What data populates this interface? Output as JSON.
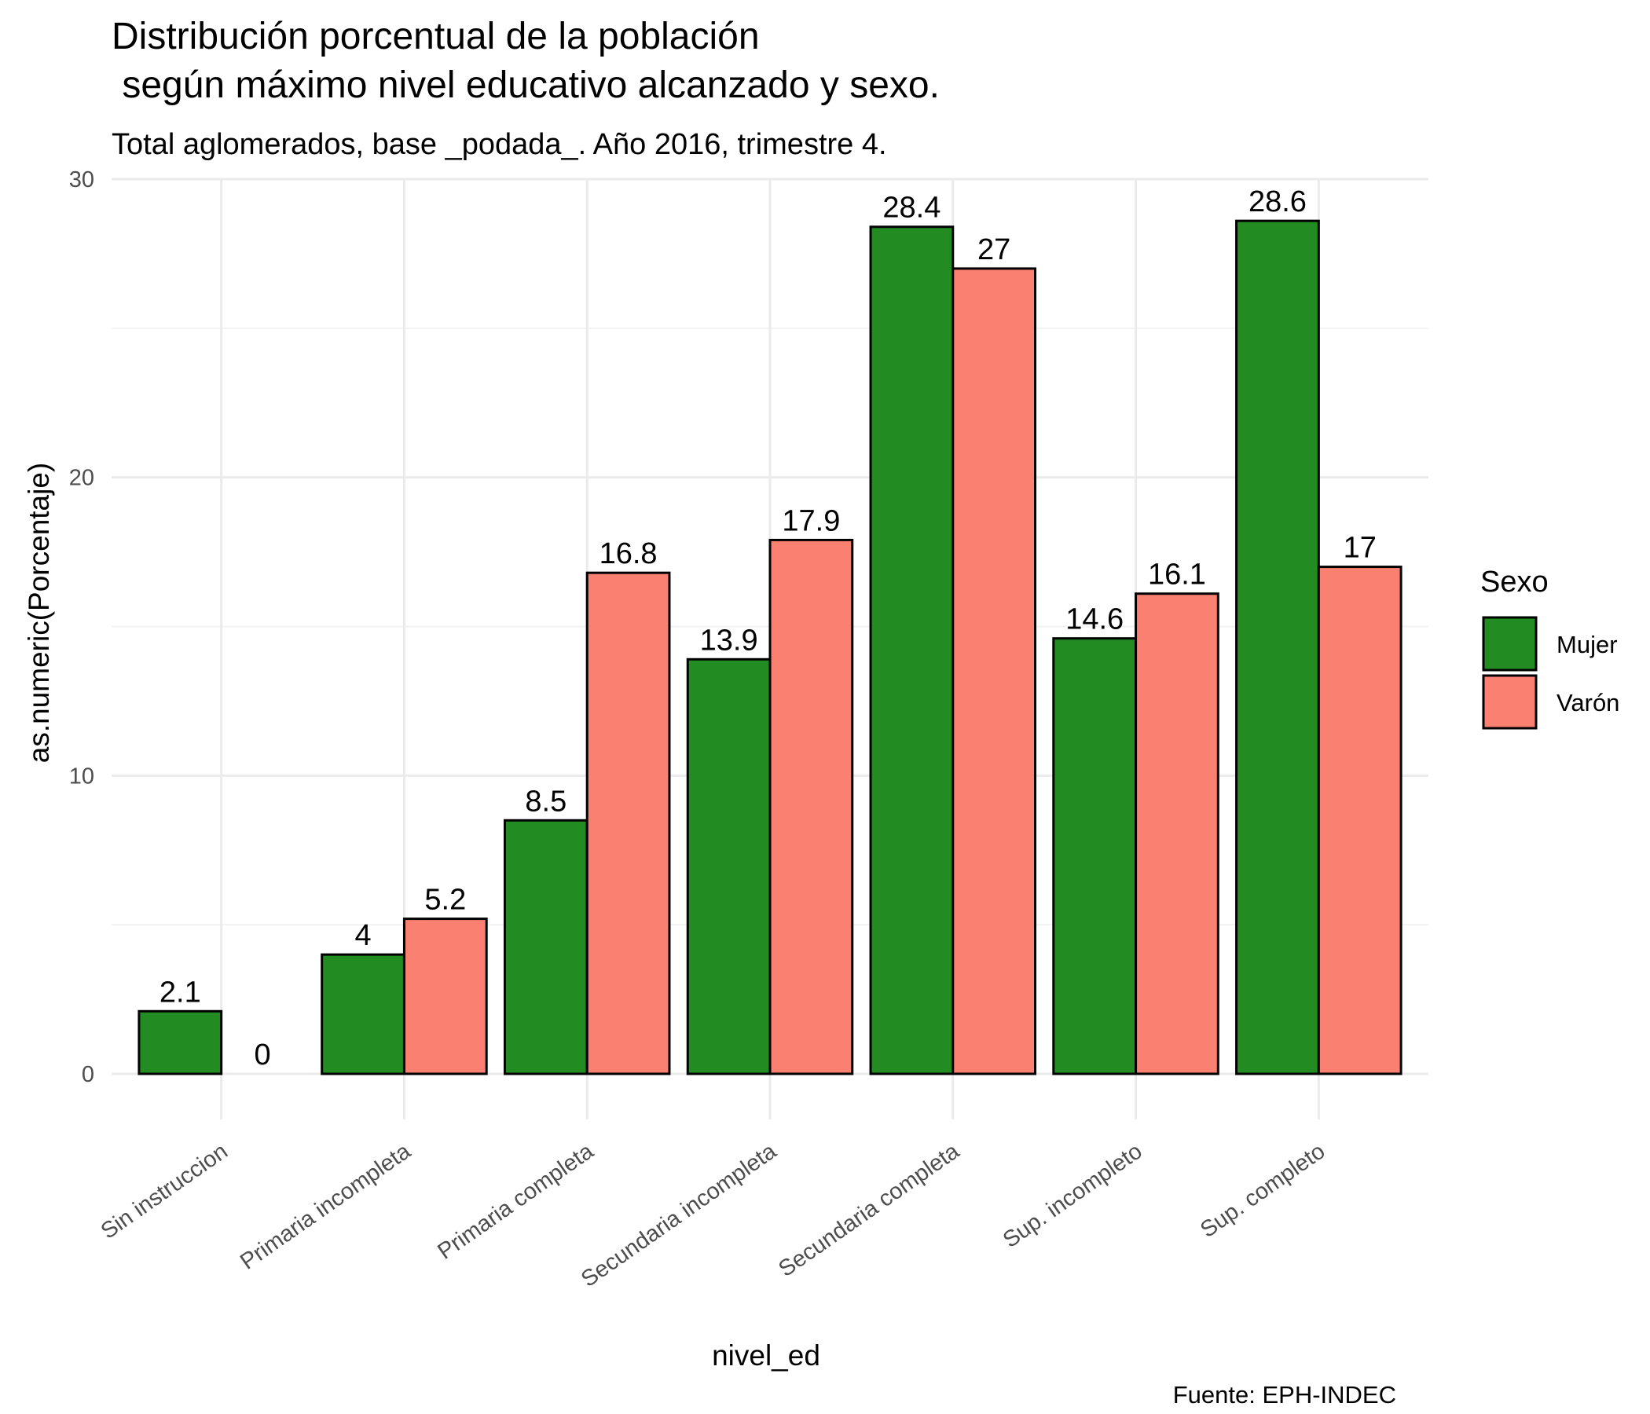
{
  "chart_data": {
    "type": "bar",
    "title_line1": "Distribución porcentual de la población",
    "title_line2": " según máximo nivel educativo alcanzado y sexo.",
    "subtitle": "Total aglomerados, base _podada_. Año 2016, trimestre 4.",
    "xlabel": "nivel_ed",
    "ylabel": "as.numeric(Porcentaje)",
    "caption": "Fuente: EPH-INDEC",
    "ylim": [
      0,
      30
    ],
    "yticks": [
      "0",
      "10",
      "20",
      "30"
    ],
    "categories": [
      "Sin instruccion",
      "Primaria incompleta",
      "Primaria completa",
      "Secundaria incompleta",
      "Secundaria completa",
      "Sup. incompleto",
      "Sup. completo"
    ],
    "series": [
      {
        "name": "Mujer",
        "color": "#228b22",
        "values": [
          2.1,
          4,
          8.5,
          13.9,
          28.4,
          14.6,
          28.6
        ],
        "labels": [
          "2.1",
          "4",
          "8.5",
          "13.9",
          "28.4",
          "14.6",
          "28.6"
        ]
      },
      {
        "name": "Varón",
        "color": "#fa8072",
        "values": [
          0,
          5.2,
          16.8,
          17.9,
          27,
          16.1,
          17
        ],
        "labels": [
          "0",
          "5.2",
          "16.8",
          "17.9",
          "27",
          "16.1",
          "17"
        ]
      }
    ],
    "legend": {
      "title": "Sexo",
      "position": "right"
    },
    "grid": true
  }
}
